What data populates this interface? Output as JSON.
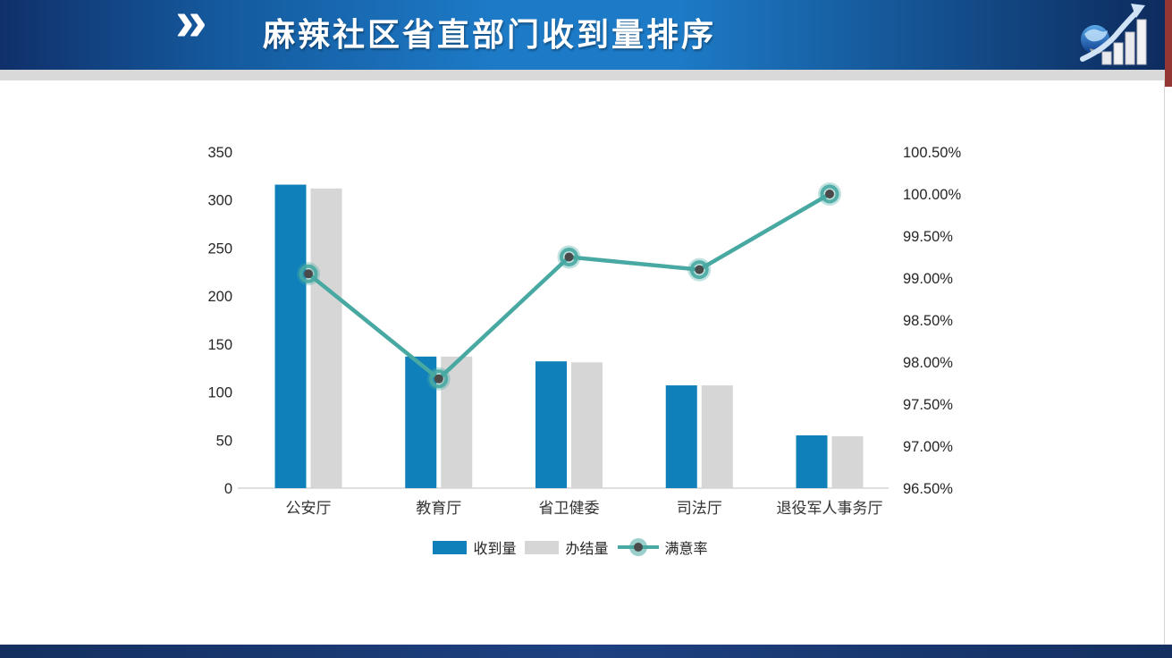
{
  "header": {
    "title": "麻辣社区省直部门收到量排序",
    "chevron": "»"
  },
  "theme": {
    "header_blue_dark": "#10306a",
    "header_blue_light": "#1d7ac6",
    "strip_gray": "#d9d9d9",
    "accent_red": "#943634",
    "footer_navy": "#17335f",
    "bar_blue": "#0f80ba",
    "bar_gray": "#d6d6d6",
    "line_teal": "#48a8a2",
    "marker_center": "#4a4a4a"
  },
  "chart_data": {
    "type": "combo-bar-line",
    "title": "",
    "categories": [
      "公安厅",
      "教育厅",
      "省卫健委",
      "司法厅",
      "退役军人事务厅"
    ],
    "series": [
      {
        "name": "收到量",
        "type": "bar",
        "axis": "left",
        "color": "#0f80ba",
        "values": [
          316,
          137,
          132,
          107,
          55
        ]
      },
      {
        "name": "办结量",
        "type": "bar",
        "axis": "left",
        "color": "#d6d6d6",
        "values": [
          312,
          137,
          131,
          107,
          54
        ]
      },
      {
        "name": "满意率",
        "type": "line",
        "axis": "right",
        "color": "#48a8a2",
        "values_pct": [
          99.05,
          97.8,
          99.25,
          99.1,
          100.0
        ]
      }
    ],
    "left_axis": {
      "min": 0,
      "max": 350,
      "step": 50,
      "ticks": [
        "350",
        "300",
        "250",
        "200",
        "150",
        "100",
        "50",
        "0"
      ]
    },
    "right_axis": {
      "min": 96.5,
      "max": 100.5,
      "step": 0.5,
      "ticks": [
        "100.50%",
        "100.00%",
        "99.50%",
        "99.00%",
        "98.50%",
        "98.00%",
        "97.50%",
        "97.00%",
        "96.50%"
      ]
    },
    "grid": false,
    "legend_position": "bottom"
  }
}
